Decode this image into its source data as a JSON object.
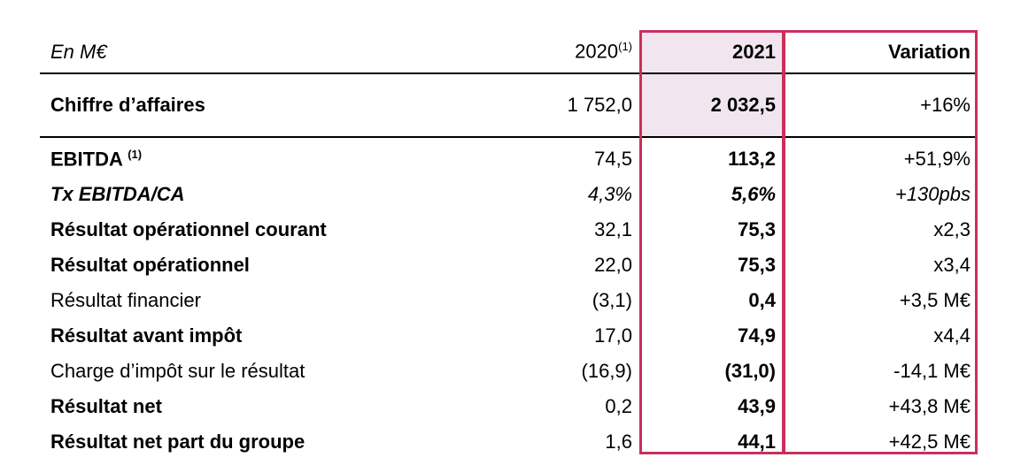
{
  "header": {
    "label": "En M€",
    "year_prev": "2020",
    "year_prev_note": "(1)",
    "year": "2021",
    "variation": "Variation"
  },
  "rows": [
    [
      "Chiffre d’affaires",
      "1 752,0",
      "2 032,5",
      "+16%"
    ],
    [
      "EBITDA",
      "74,5",
      "113,2",
      "+51,9%"
    ],
    [
      "Tx EBITDA/CA",
      "4,3%",
      "5,6%",
      "+130pbs"
    ],
    [
      "Résultat opérationnel courant",
      "32,1",
      "75,3",
      "x2,3"
    ],
    [
      "Résultat opérationnel",
      "22,0",
      "75,3",
      "x3,4"
    ],
    [
      "Résultat financier",
      "(3,1)",
      "0,4",
      "+3,5 M€"
    ],
    [
      "Résultat avant impôt",
      "17,0",
      "74,9",
      "x4,4"
    ],
    [
      "Charge d’impôt sur le résultat",
      "(16,9)",
      "(31,0)",
      "-14,1 M€"
    ],
    [
      "Résultat net",
      "0,2",
      "43,9",
      "+43,8 M€"
    ],
    [
      "Résultat net part du groupe",
      "1,6",
      "44,1",
      "+42,5 M€"
    ]
  ],
  "ebitda_note": "(1)"
}
